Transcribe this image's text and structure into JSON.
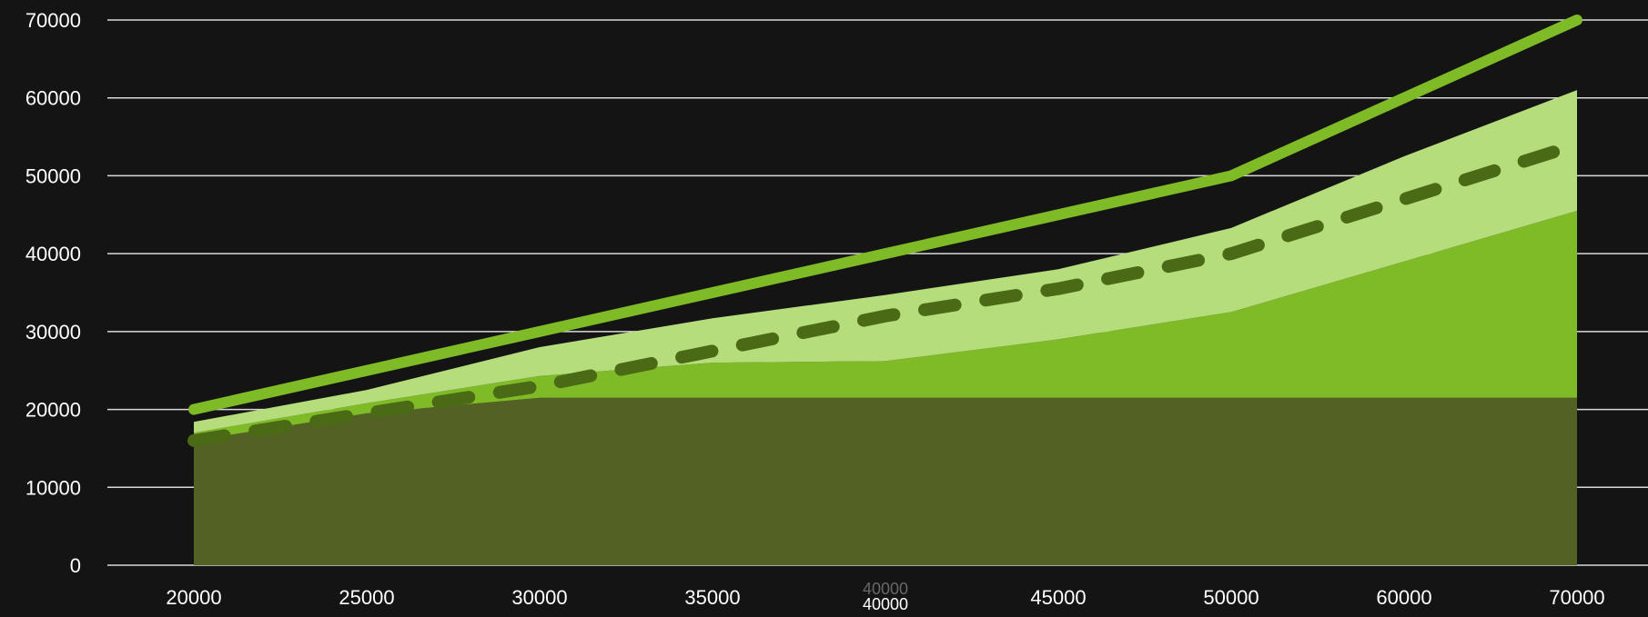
{
  "chart_data": {
    "type": "area",
    "title": "",
    "xlabel": "",
    "ylabel": "",
    "x_ticks": [
      "20000",
      "25000",
      "30000",
      "35000",
      "40000",
      "45000",
      "50000",
      "60000",
      "70000"
    ],
    "x_tick_extra": "40000",
    "x_values": [
      20000,
      25000,
      30000,
      35000,
      40000,
      45000,
      50000,
      60000,
      70000
    ],
    "y_ticks": [
      "0",
      "10000",
      "20000",
      "30000",
      "40000",
      "50000",
      "60000",
      "70000"
    ],
    "ylim": [
      0,
      70000
    ],
    "grid": true,
    "legend": "none",
    "stack_colors": [
      "#536125",
      "#7fba27",
      "#b5dd7b"
    ],
    "series": [
      {
        "kind": "stacked-area",
        "values": [
          16000,
          19500,
          21500,
          21500,
          21500,
          21500,
          21500,
          21500,
          21500
        ]
      },
      {
        "kind": "stacked-area",
        "values": [
          1000,
          1300,
          2800,
          4500,
          4700,
          7500,
          11000,
          17500,
          24000
        ]
      },
      {
        "kind": "stacked-area",
        "values": [
          1400,
          1700,
          3700,
          5700,
          8500,
          9000,
          10800,
          13500,
          15500
        ]
      },
      {
        "kind": "solid-line",
        "color": "#7fba27",
        "values": [
          20000,
          25000,
          30000,
          35000,
          40000,
          45000,
          50000,
          60000,
          70000
        ]
      },
      {
        "kind": "dashed-line",
        "color": "#4a6a16",
        "values": [
          16000,
          19500,
          23000,
          27500,
          32000,
          35500,
          40000,
          47000,
          54000
        ]
      }
    ]
  }
}
